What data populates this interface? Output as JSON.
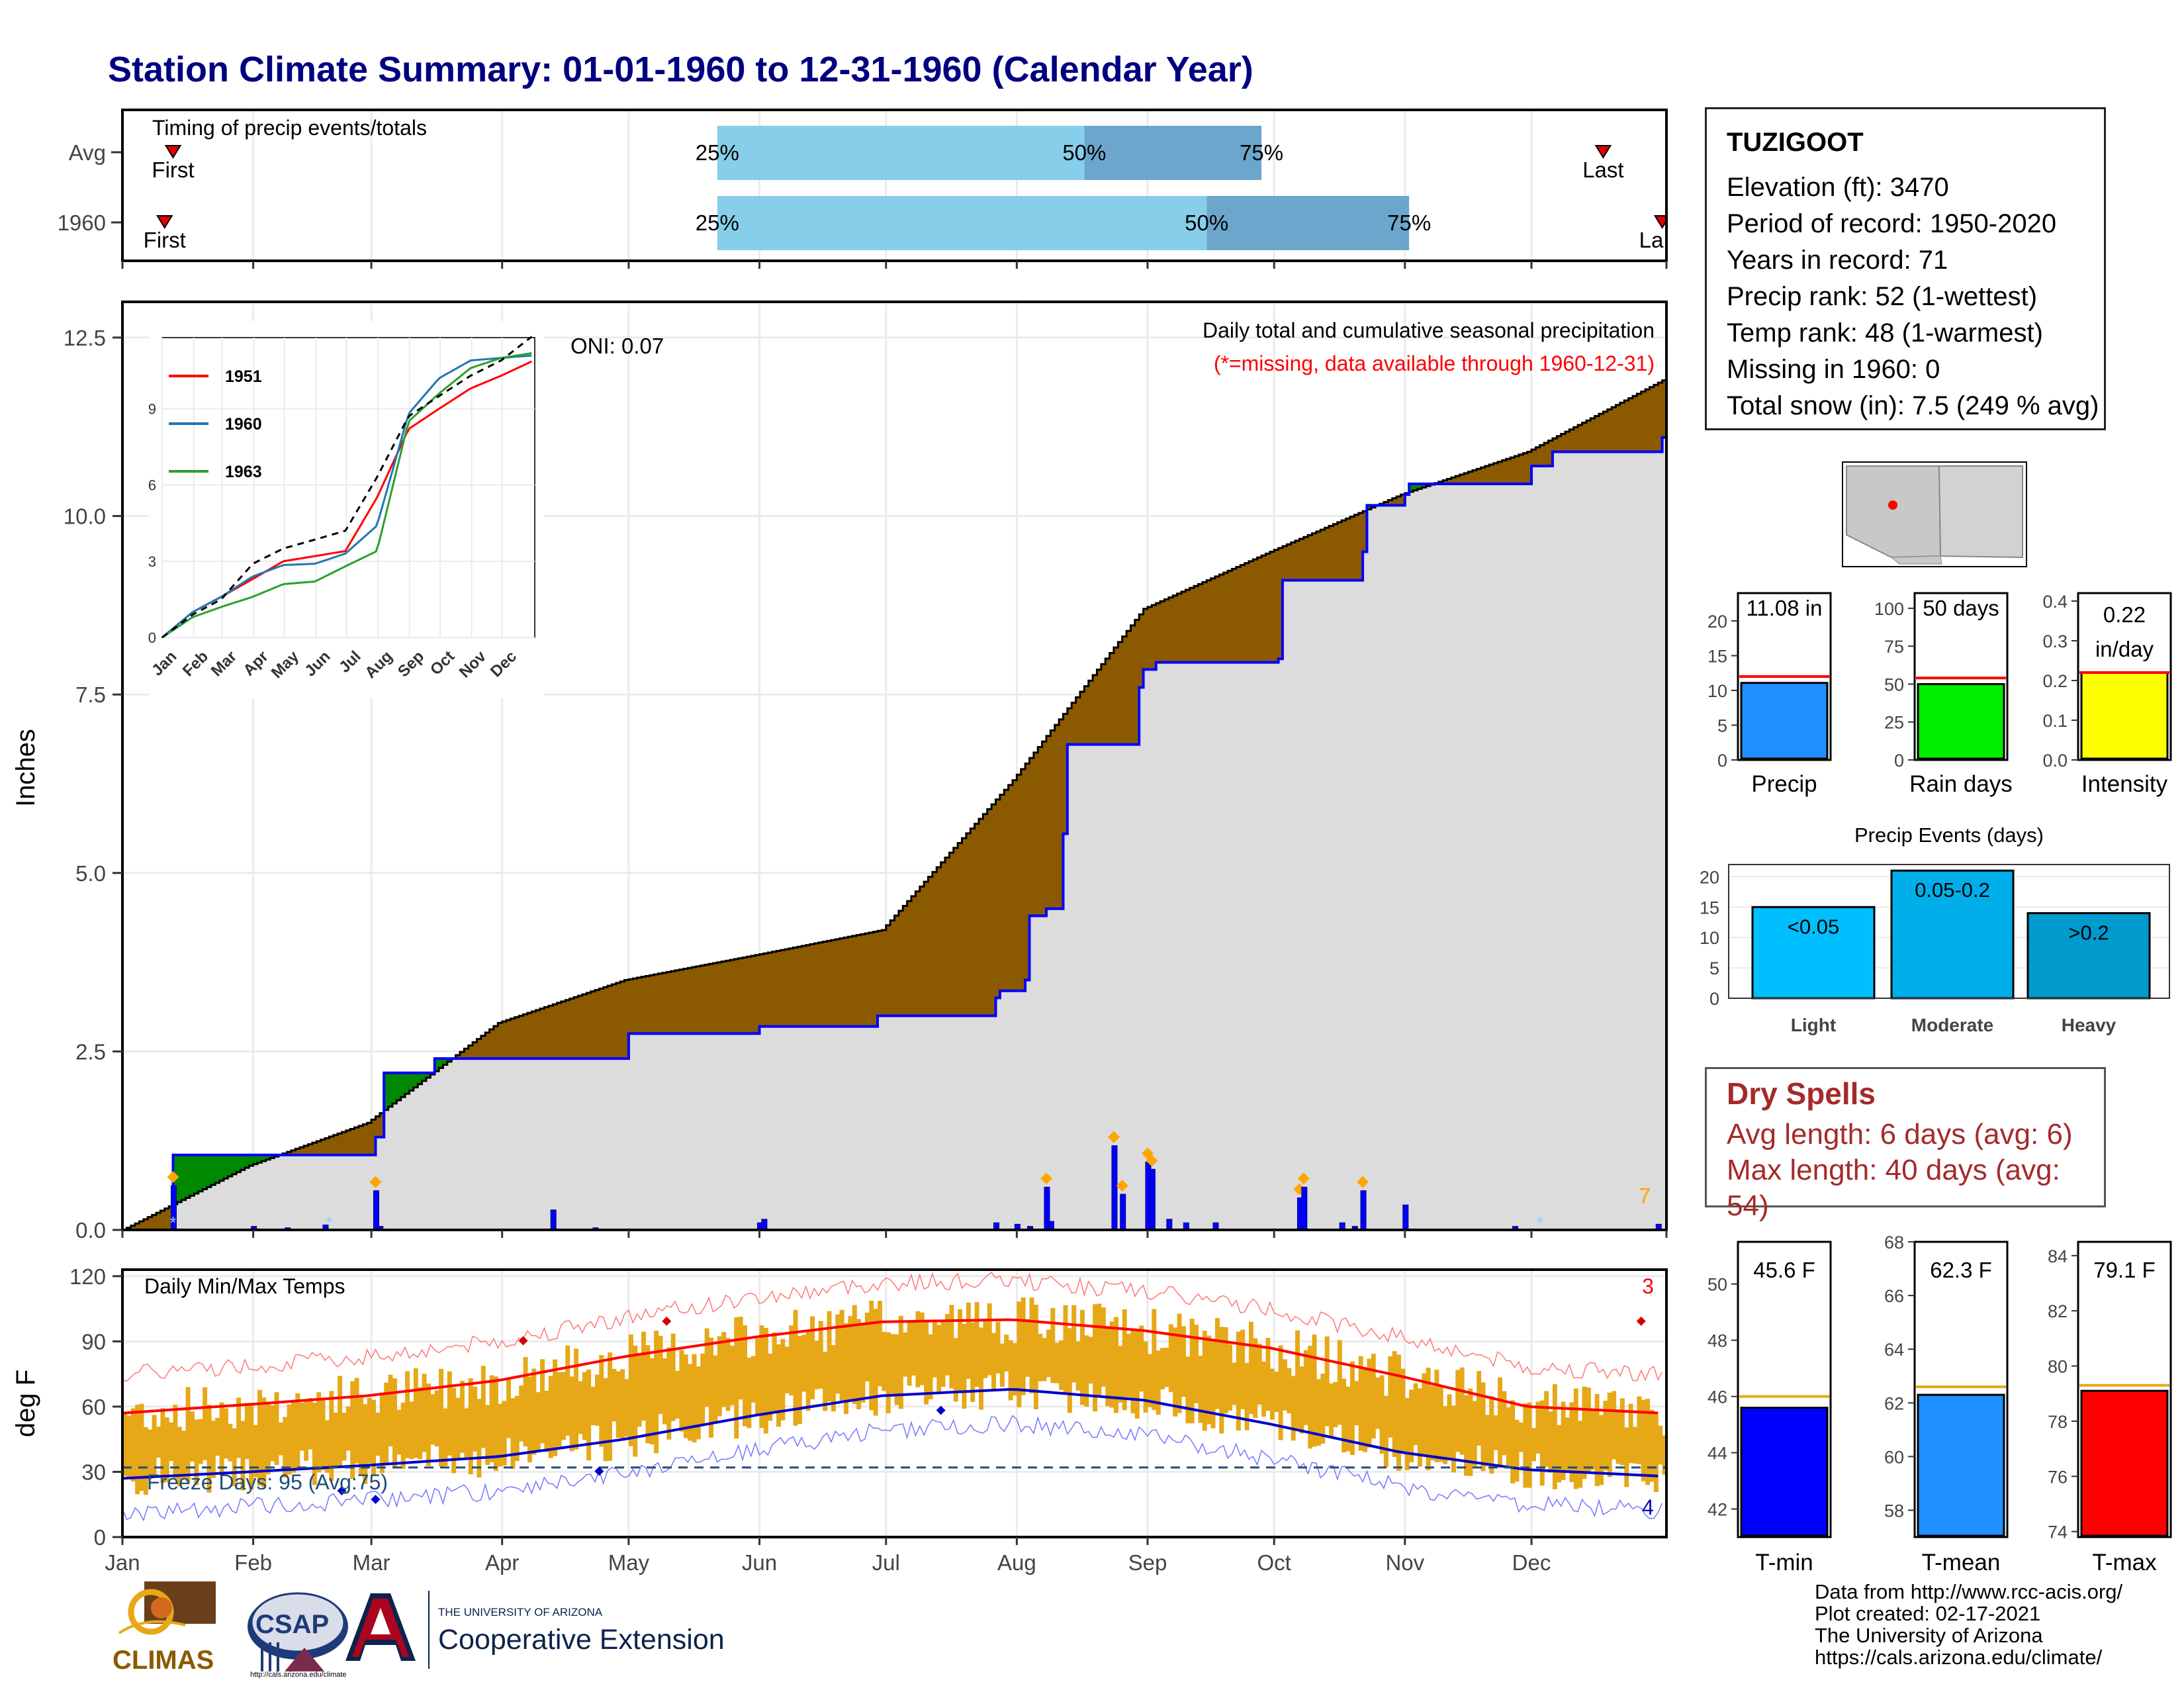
{
  "title": "Station Climate Summary: 01-01-1960 to 12-31-1960 (Calendar Year)",
  "timing": {
    "title": "Timing of precip events/totals",
    "rows": [
      {
        "label": "Avg",
        "first": "First",
        "last": "Last",
        "q25": "25%",
        "q50": "50%",
        "q75": "75%",
        "first_day": 13,
        "last_day": 352,
        "q25_day": 142,
        "q50_day": 229,
        "q75_day": 271
      },
      {
        "label": "1960",
        "first": "First",
        "last": "La",
        "q25": "25%",
        "q50": "50%",
        "q75": "75%",
        "first_day": 11,
        "last_day": 366,
        "q25_day": 142,
        "q50_day": 258,
        "q75_day": 306
      }
    ]
  },
  "precip_panel": {
    "ylabel": "Inches",
    "yticks": [
      "0.0",
      "2.5",
      "5.0",
      "7.5",
      "10.0",
      "12.5"
    ],
    "title": "Daily total and cumulative seasonal precipitation",
    "subtitle": "(*=missing, data available through 1960-12-31)",
    "oni": "ONI: 0.07",
    "count": "7"
  },
  "temp_panel": {
    "ylabel": "deg F",
    "yticks": [
      "0",
      "30",
      "60",
      "90",
      "120"
    ],
    "title": "Daily Min/Max Temps",
    "freeze": "Freeze Days: 95 (Avg:75)",
    "count_high": "3",
    "count_low": "4"
  },
  "months": [
    "Jan",
    "Feb",
    "Mar",
    "Apr",
    "May",
    "Jun",
    "Jul",
    "Aug",
    "Sep",
    "Oct",
    "Nov",
    "Dec"
  ],
  "inset": {
    "yticks": [
      "0",
      "3",
      "6",
      "9"
    ],
    "months": [
      "Jan",
      "Feb",
      "Mar",
      "Apr",
      "May",
      "Jun",
      "Jul",
      "Aug",
      "Sep",
      "Oct",
      "Nov",
      "Dec"
    ],
    "legend": [
      "1951",
      "1960",
      "1963"
    ]
  },
  "station": {
    "name": "TUZIGOOT",
    "lines": [
      "Elevation (ft): 3470",
      "Period of record: 1950-2020",
      "Years in record: 71",
      "Precip rank: 52 (1-wettest)",
      "Temp rank: 48 (1-warmest)",
      "Missing in 1960: 0",
      "Total snow (in): 7.5 (249 % avg)"
    ]
  },
  "summary_bars": [
    {
      "label": "Precip",
      "value_text": "11.08 in",
      "value": 11.08,
      "avg": 12.0,
      "ymax": 24,
      "yticks": [
        "0",
        "5",
        "10",
        "15",
        "20"
      ],
      "color": "#1e90ff"
    },
    {
      "label": "Rain days",
      "value_text": "50 days",
      "value": 50,
      "avg": 54,
      "ymax": 110,
      "yticks": [
        "0",
        "25",
        "50",
        "75",
        "100"
      ],
      "color": "#00ee00"
    },
    {
      "label": "Intensity",
      "value_text": "0.22 in/day",
      "value_line1": "0.22",
      "value_line2": "in/day",
      "value": 0.22,
      "avg": 0.22,
      "ymax": 0.42,
      "yticks": [
        "0.0",
        "0.1",
        "0.2",
        "0.3",
        "0.4"
      ],
      "color": "#ffff00"
    }
  ],
  "precip_events": {
    "title": "Precip Events (days)",
    "yticks": [
      "0",
      "5",
      "10",
      "15",
      "20"
    ],
    "categories": [
      "Light",
      "Moderate",
      "Heavy"
    ],
    "bar_labels": [
      "<0.05",
      "0.05-0.2",
      ">0.2"
    ],
    "values": [
      15,
      21,
      14
    ],
    "colors": [
      "#00bfff",
      "#00aeea",
      "#009acd"
    ]
  },
  "dry_spells": {
    "title": "Dry Spells",
    "avg": "Avg length: 6 days (avg: 6)",
    "max": "Max length: 40 days (avg: 54)"
  },
  "temp_bars": [
    {
      "label": "T-min",
      "value_text": "45.6 F",
      "value": 45.6,
      "avg": 46.0,
      "ymin": 41,
      "ymax": 51.5,
      "yticks": [
        "42",
        "44",
        "46",
        "48",
        "50"
      ],
      "color": "#0000ff"
    },
    {
      "label": "T-mean",
      "value_text": "62.3 F",
      "value": 62.3,
      "avg": 62.6,
      "ymin": 57,
      "ymax": 68,
      "yticks": [
        "58",
        "60",
        "62",
        "64",
        "66",
        "68"
      ],
      "color": "#1e90ff"
    },
    {
      "label": "T-max",
      "value_text": "79.1 F",
      "value": 79.1,
      "avg": 79.3,
      "ymin": 73.8,
      "ymax": 84.5,
      "yticks": [
        "74",
        "76",
        "78",
        "80",
        "82",
        "84"
      ],
      "color": "#ff0000"
    }
  ],
  "credits": [
    "Data from http://www.rcc-acis.org/",
    "Plot created: 02-17-2021",
    "The University of Arizona",
    "https://cals.arizona.edu/climate/"
  ],
  "logos": {
    "climas": "CLIMAS",
    "csap": "CSAP",
    "csap_url": "http://cals.arizona.edu/climate",
    "ua_line1": "THE UNIVERSITY OF ARIZONA",
    "ua_line2": "Cooperative Extension"
  },
  "colors": {
    "title": "#000080",
    "cum_avg_fill": "#8b5a00",
    "cum_above_fill": "#008800",
    "cum_year_line": "#0000ff",
    "daily_bar": "#0000ff",
    "temp_range": "#e6a817",
    "tmax_line": "#ff0000",
    "tmin_line": "#0000cc",
    "missing": "#dcdcdc"
  },
  "chart_data": [
    {
      "type": "area",
      "title": "Daily total and cumulative seasonal precipitation",
      "ylabel": "Inches",
      "ylim": [
        0,
        13
      ],
      "x_unit": "day of year",
      "series": [
        {
          "name": "1960",
          "x": [
            1,
            13,
            43,
            61,
            63,
            75,
            121,
            152,
            153,
            180,
            181,
            208,
            209,
            215,
            216,
            220,
            224,
            225,
            242,
            243,
            245,
            246,
            275,
            276,
            295,
            296,
            305,
            306,
            335,
            340,
            366
          ],
          "y": [
            0,
            1.05,
            1.05,
            1.3,
            2.2,
            2.4,
            2.75,
            2.85,
            2.85,
            3.0,
            3.0,
            3.25,
            3.35,
            3.5,
            4.4,
            4.5,
            5.55,
            6.8,
            7.6,
            7.85,
            7.85,
            7.95,
            8.0,
            9.1,
            9.5,
            10.15,
            10.3,
            10.45,
            10.7,
            10.9,
            11.1
          ]
        },
        {
          "x": [
            1,
            31,
            59,
            90,
            120,
            151,
            181,
            212,
            243,
            273,
            304,
            334,
            366
          ],
          "y": [
            0,
            0.9,
            1.5,
            2.9,
            3.5,
            3.85,
            4.2,
            6.3,
            8.7,
            9.5,
            10.3,
            10.9,
            11.9
          ]
        }
      ],
      "daily_precip": {
        "x": [
          13,
          32,
          40,
          49,
          61,
          62,
          103,
          113,
          152,
          153,
          208,
          213,
          216,
          220,
          221,
          236,
          238,
          244,
          245,
          249,
          253,
          260,
          280,
          281,
          290,
          293,
          295,
          305,
          331,
          365
        ],
        "y": [
          0.62,
          0.05,
          0.03,
          0.07,
          0.55,
          0.05,
          0.28,
          0.03,
          0.1,
          0.15,
          0.1,
          0.08,
          0.05,
          0.6,
          0.12,
          1.18,
          0.5,
          0.95,
          0.85,
          0.15,
          0.1,
          0.1,
          0.45,
          0.6,
          0.1,
          0.05,
          0.55,
          0.35,
          0.05,
          0.08
        ]
      }
    },
    {
      "type": "line",
      "title": "Daily Min/Max Temps",
      "ylabel": "deg F",
      "ylim": [
        0,
        120
      ],
      "series": [
        {
          "x": [
            1,
            31,
            59,
            90,
            120,
            151,
            181,
            212,
            243,
            273,
            304,
            334,
            366
          ],
          "y": [
            57,
            61,
            65,
            72,
            83,
            92,
            99,
            100,
            95,
            87,
            74,
            60,
            57
          ]
        },
        {
          "x": [
            1,
            31,
            59,
            90,
            120,
            151,
            181,
            212,
            243,
            273,
            304,
            334,
            366
          ],
          "y": [
            27,
            30,
            33,
            37,
            45,
            56,
            65,
            68,
            63,
            52,
            39,
            31,
            28
          ]
        }
      ]
    },
    {
      "type": "line",
      "title": "",
      "yticks": [
        0,
        3,
        6,
        9
      ],
      "series": [
        {
          "name": "1951",
          "x": [
            1,
            31,
            59,
            90,
            120,
            151,
            181,
            212,
            243,
            273,
            304,
            334,
            366
          ],
          "y": [
            0,
            1.0,
            1.6,
            2.3,
            3.0,
            3.2,
            3.4,
            5.5,
            8.2,
            9.0,
            9.8,
            10.3,
            10.9
          ]
        },
        {
          "name": "1960",
          "x": [
            1,
            31,
            59,
            90,
            120,
            151,
            181,
            212,
            243,
            273,
            304,
            334,
            366
          ],
          "y": [
            0,
            1.0,
            1.6,
            2.4,
            2.85,
            2.9,
            3.3,
            4.4,
            8.8,
            10.2,
            10.9,
            11.0,
            11.1
          ]
        },
        {
          "name": "1963",
          "x": [
            1,
            31,
            59,
            90,
            120,
            151,
            181,
            212,
            243,
            273,
            304,
            334,
            366
          ],
          "y": [
            0,
            0.8,
            1.2,
            1.6,
            2.1,
            2.2,
            2.8,
            3.4,
            8.5,
            9.6,
            10.6,
            11.0,
            11.2
          ]
        },
        {
          "x": [
            1,
            31,
            59,
            90,
            120,
            151,
            181,
            212,
            243,
            273,
            304,
            334,
            366
          ],
          "y": [
            0,
            0.9,
            1.5,
            2.9,
            3.5,
            3.85,
            4.2,
            6.3,
            8.7,
            9.5,
            10.3,
            10.9,
            11.9
          ]
        }
      ]
    },
    {
      "type": "bar",
      "categories": [
        "Precip",
        "Rain days",
        "Intensity"
      ],
      "values": [
        11.08,
        50,
        0.22
      ]
    },
    {
      "type": "bar",
      "title": "Precip Events (days)",
      "categories": [
        "Light",
        "Moderate",
        "Heavy"
      ],
      "values": [
        15,
        21,
        14
      ]
    },
    {
      "type": "bar",
      "categories": [
        "T-min",
        "T-mean",
        "T-max"
      ],
      "values": [
        45.6,
        62.3,
        79.1
      ]
    }
  ]
}
